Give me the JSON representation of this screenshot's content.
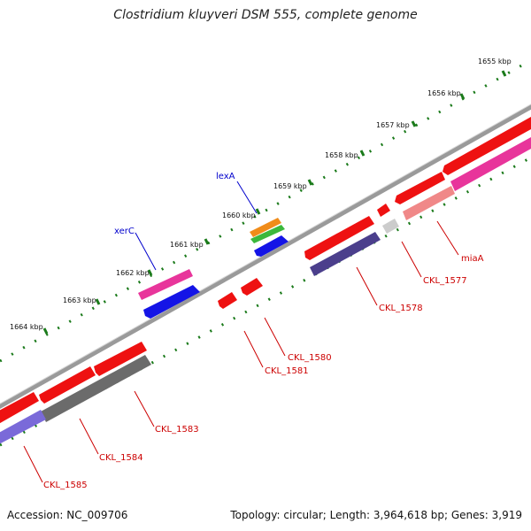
{
  "title": "Clostridium kluyveri DSM 555, complete genome",
  "footer": {
    "accession": "Accession: NC_009706",
    "stats": "Topology: circular; Length: 3,964,618 bp; Genes: 3,919"
  },
  "colors": {
    "backbone": "#999999",
    "tick": "#1a7a1a",
    "gene_label": "#cc0000",
    "gene_label_blue": "#0000cc"
  },
  "scale_labels": [
    "1655 kbp",
    "1656 kbp",
    "1657 kbp",
    "1658 kbp",
    "1659 kbp",
    "1660 kbp",
    "1661 kbp",
    "1662 kbp",
    "1663 kbp",
    "1664 kbp"
  ],
  "gene_labels": [
    "miaA",
    "CKL_1577",
    "CKL_1578",
    "CKL_1580",
    "CKL_1581",
    "CKL_1583",
    "CKL_1584",
    "CKL_1585",
    "lexA",
    "xerC"
  ]
}
